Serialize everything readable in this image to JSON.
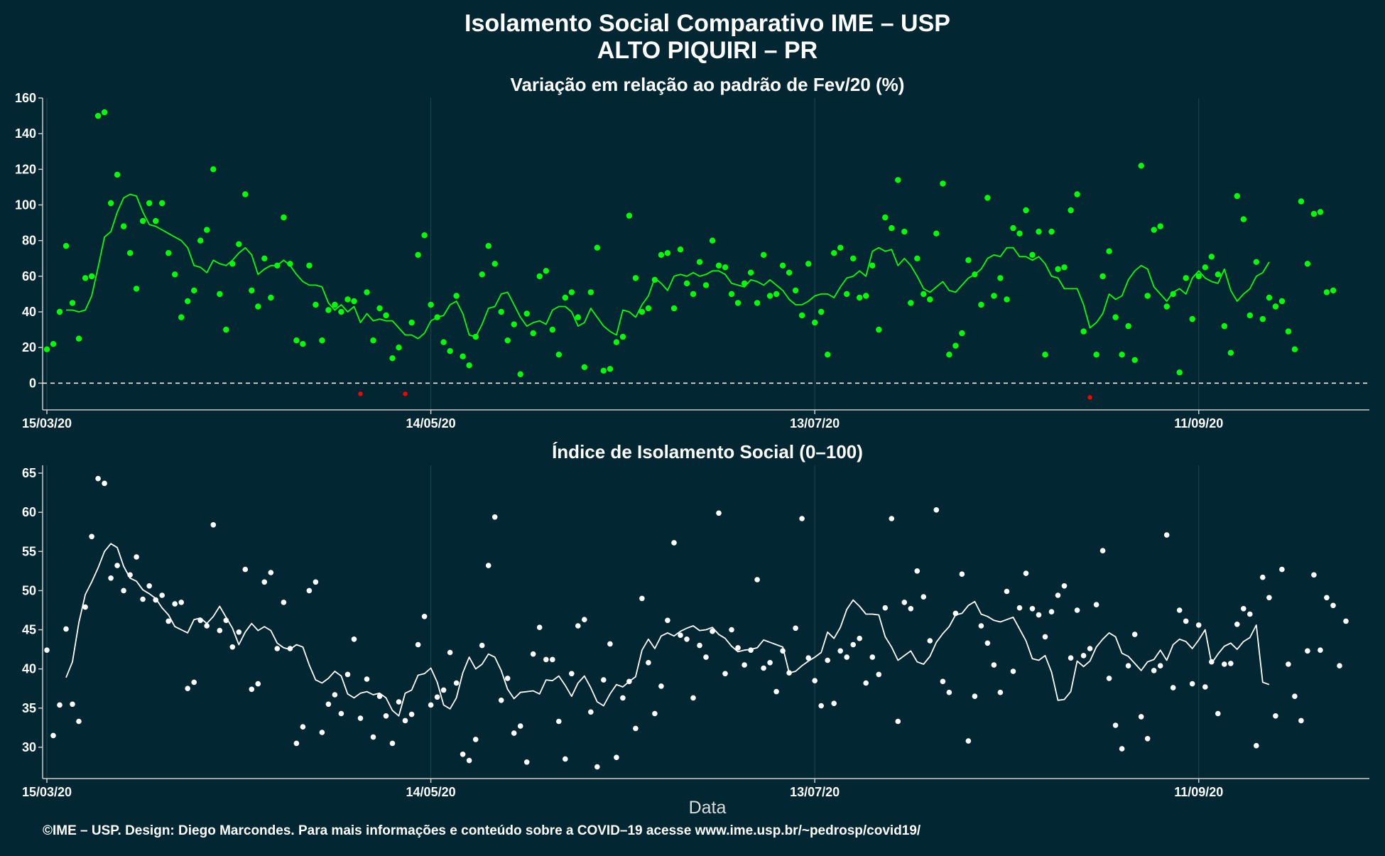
{
  "header": {
    "title_line1": "Isolamento Social Comparativo IME – USP",
    "title_line2": "ALTO PIQUIRI – PR"
  },
  "footer": {
    "caption": "©IME – USP. Design: Diego Marcondes. Para mais informações e conteúdo sobre a COVID–19 acesse www.ime.usp.br/~pedrosp/covid19/"
  },
  "colors": {
    "background": "#022733",
    "top_points": "#00ff00",
    "top_line": "#00ff00",
    "negative": "#ff0000",
    "bottom_points": "#ffffff",
    "bottom_line": "#ffffff",
    "grid": "#1b4750"
  },
  "chart_data": [
    {
      "type": "scatter",
      "title": "Variação em relação ao padrão de Fev/20 (%)",
      "xlabel": "",
      "ylabel": "",
      "x_start": "15/03/20",
      "x_ticks": [
        {
          "label": "15/03/20",
          "day": 0
        },
        {
          "label": "14/05/20",
          "day": 60
        },
        {
          "label": "13/07/20",
          "day": 120
        },
        {
          "label": "11/09/20",
          "day": 180
        }
      ],
      "xlim": [
        0,
        206
      ],
      "ylim": [
        -15,
        160
      ],
      "y_ticks": [
        0,
        20,
        40,
        60,
        80,
        100,
        120,
        140,
        160
      ],
      "reference_line": 0,
      "grid": true,
      "points": [
        19,
        22,
        40,
        77,
        45,
        25,
        59,
        60,
        150,
        152,
        101,
        117,
        88,
        73,
        53,
        91,
        101,
        91,
        101,
        73,
        61,
        37,
        46,
        52,
        80,
        86,
        120,
        50,
        30,
        67,
        78,
        106,
        52,
        43,
        70,
        48,
        66,
        93,
        67,
        24,
        22,
        66,
        44,
        24,
        41,
        44,
        40,
        47,
        46,
        -6,
        51,
        24,
        42,
        38,
        14,
        20,
        -6,
        34,
        72,
        83,
        44,
        37,
        23,
        18,
        49,
        15,
        10,
        26,
        61,
        77,
        67,
        40,
        24,
        33,
        5,
        39,
        28,
        60,
        63,
        30,
        16,
        48,
        51,
        37,
        9,
        51,
        76,
        7,
        8,
        23,
        26,
        94,
        59,
        40,
        42,
        58,
        72,
        73,
        42,
        75,
        56,
        50,
        68,
        55,
        80,
        66,
        65,
        50,
        45,
        56,
        62,
        45,
        72,
        49,
        50,
        66,
        62,
        52,
        38,
        67,
        34,
        40,
        16,
        73,
        76,
        50,
        70,
        48,
        49,
        66,
        30,
        93,
        87,
        114,
        85,
        45,
        70,
        50,
        47,
        84,
        112,
        16,
        21,
        28,
        69,
        61,
        44,
        104,
        49,
        59,
        47,
        87,
        84,
        97,
        72,
        85,
        16,
        85,
        64,
        65,
        97,
        106,
        29,
        -8,
        16,
        60,
        74,
        37,
        16,
        32,
        13,
        122,
        49,
        86,
        88,
        43,
        50,
        6,
        59,
        36,
        60,
        65,
        71,
        61,
        32,
        17,
        105,
        92,
        38,
        68,
        36,
        48,
        43,
        46,
        29,
        19,
        102,
        67,
        95,
        96,
        51,
        52
      ],
      "moving_average": [
        null,
        null,
        null,
        41,
        41,
        40,
        41,
        49,
        65,
        82,
        85,
        96,
        104,
        106,
        105,
        96,
        89,
        88,
        86,
        84,
        82,
        80,
        76,
        66,
        65,
        62,
        69,
        67,
        66,
        69,
        73,
        76,
        72,
        61,
        64,
        66,
        66,
        69,
        66,
        61,
        57,
        55,
        55,
        54,
        45,
        41,
        44,
        40,
        43,
        34,
        39,
        35,
        36,
        35,
        35,
        31,
        27,
        27,
        25,
        28,
        35,
        37,
        38,
        44,
        46,
        39,
        27,
        26,
        33,
        42,
        43,
        50,
        51,
        44,
        37,
        32,
        34,
        35,
        33,
        41,
        43,
        43,
        40,
        32,
        34,
        42,
        37,
        32,
        29,
        27,
        41,
        40,
        37,
        44,
        49,
        59,
        56,
        52,
        60,
        61,
        60,
        62,
        60,
        61,
        63,
        63,
        61,
        56,
        55,
        54,
        58,
        57,
        55,
        58,
        55,
        52,
        47,
        44,
        44,
        46,
        49,
        50,
        50,
        48,
        54,
        59,
        60,
        63,
        60,
        74,
        76,
        74,
        75,
        66,
        70,
        66,
        60,
        53,
        51,
        54,
        57,
        52,
        51,
        55,
        59,
        61,
        64,
        70,
        72,
        71,
        76,
        76,
        71,
        71,
        69,
        71,
        67,
        60,
        59,
        53,
        53,
        53,
        44,
        31,
        34,
        39,
        50,
        47,
        49,
        58,
        63,
        66,
        64,
        54,
        50,
        46,
        51,
        53,
        50,
        59,
        63,
        59,
        57,
        56,
        64,
        52,
        46,
        50,
        53,
        60,
        62,
        68
      ]
    },
    {
      "type": "scatter",
      "title": "Índice de Isolamento Social (0–100)",
      "xlabel": "Data",
      "ylabel": "",
      "x_start": "15/03/20",
      "x_ticks": [
        {
          "label": "15/03/20",
          "day": 0
        },
        {
          "label": "14/05/20",
          "day": 60
        },
        {
          "label": "13/07/20",
          "day": 120
        },
        {
          "label": "11/09/20",
          "day": 180
        }
      ],
      "xlim": [
        0,
        206
      ],
      "ylim": [
        26,
        66
      ],
      "y_ticks": [
        30,
        35,
        40,
        45,
        50,
        55,
        60,
        65
      ],
      "grid": true,
      "points": [
        42.4,
        31.5,
        35.4,
        45.1,
        35.5,
        33.3,
        47.9,
        56.9,
        64.3,
        63.7,
        51.6,
        53.2,
        50,
        52,
        54.3,
        48.9,
        50.6,
        48.8,
        49.4,
        46.1,
        48.3,
        48.5,
        37.5,
        38.3,
        46.2,
        45.5,
        58.4,
        44.9,
        46.2,
        42.8,
        44.7,
        52.7,
        37.4,
        38.1,
        51.1,
        52.3,
        42.6,
        48.5,
        42.6,
        30.5,
        32.6,
        50.0,
        51.1,
        31.9,
        35.5,
        36.7,
        34.3,
        39.3,
        43.8,
        33.7,
        38.7,
        31.3,
        36.5,
        34.0,
        30.5,
        35.8,
        33.4,
        34.2,
        43.1,
        46.7,
        35.4,
        36.4,
        37.3,
        42.1,
        38.2,
        29.1,
        28.3,
        31.0,
        43.0,
        53.2,
        59.4,
        36.0,
        38.8,
        31.8,
        32.7,
        28.1,
        41.9,
        45.3,
        41.2,
        41.2,
        33.3,
        28.5,
        39.4,
        45.5,
        46.3,
        34.5,
        27.5,
        38.6,
        43.2,
        28.7,
        36.3,
        38.4,
        32.4,
        49.0,
        40.8,
        34.3,
        37.8,
        46.2,
        56.1,
        44.3,
        43.8,
        36.3,
        43.0,
        41.5,
        44.8,
        59.9,
        39.4,
        45.0,
        42.7,
        40.5,
        42.4,
        51.4,
        40.1,
        40.8,
        37.1,
        42.3,
        39.5,
        45.2,
        59.2,
        41.4,
        38.5,
        35.3,
        41.1,
        35.6,
        42.3,
        41.5,
        43.1,
        43.9,
        38.2,
        41.5,
        39.3,
        47.8,
        59.2,
        33.3,
        48.5,
        47.7,
        52.5,
        49.2,
        43.6,
        60.3,
        38.4,
        37.0,
        47.1,
        52.1,
        30.8,
        36.5,
        45.5,
        43.3,
        40.5,
        37.0,
        49.9,
        39.7,
        47.8,
        52.2,
        47.7,
        46.9,
        44.1,
        47.3,
        49.4,
        50.6,
        41.4,
        47.5,
        41.7,
        42.6,
        48.2,
        55.1,
        38.8,
        32.8,
        29.8,
        40.4,
        44.4,
        33.9,
        31.1,
        39.8,
        40.4,
        57.1,
        37.6,
        47.5,
        46.1,
        38.1,
        45.6,
        37.7,
        40.9,
        34.3,
        40.6,
        40.7,
        45.7,
        47.7,
        47.0,
        30.2,
        51.7,
        49.1,
        34.0,
        52.7,
        40.6,
        36.5,
        33.4,
        42.3,
        52.0,
        42.4,
        49.1,
        48.1,
        40.4,
        46.1
      ],
      "moving_average": [
        null,
        null,
        null,
        38.9,
        40.9,
        45.9,
        49.5,
        51.1,
        52.9,
        55.0,
        56.0,
        55.5,
        53.1,
        51.6,
        51.2,
        50.1,
        49.6,
        49.0,
        47.8,
        46.9,
        45.4,
        45.0,
        44.6,
        46.3,
        46.5,
        45.8,
        46.7,
        48.0,
        46.6,
        45.2,
        43.1,
        44.7,
        45.8,
        44.9,
        45.4,
        44.9,
        43.3,
        42.7,
        42.5,
        43.1,
        42.8,
        40.5,
        38.6,
        38.2,
        38.8,
        39.7,
        39.1,
        36.8,
        36.3,
        36.9,
        37.1,
        36.7,
        36.9,
        36.3,
        34.7,
        34.0,
        36.9,
        37.3,
        39.2,
        39.4,
        40.1,
        38.3,
        35.4,
        34.9,
        36.3,
        39.5,
        41.5,
        40.0,
        40.6,
        41.9,
        41.5,
        39.8,
        37.4,
        36.2,
        37.0,
        37.1,
        37.2,
        36.8,
        38.6,
        38.5,
        39.1,
        37.9,
        36.5,
        38.2,
        39.1,
        37.6,
        35.8,
        35.3,
        36.8,
        38.0,
        37.7,
        38.4,
        39.0,
        42.4,
        43.8,
        42.6,
        44.2,
        44.6,
        44.2,
        44.8,
        45.2,
        45.5,
        44.9,
        45.0,
        45.3,
        44.4,
        43.9,
        42.9,
        42.2,
        42.4,
        42.5,
        42.7,
        43.7,
        43.4,
        43.1,
        42.8,
        39.5,
        39.7,
        40.4,
        41.0,
        41.5,
        42.1,
        44.7,
        43.9,
        45.3,
        47.6,
        48.8,
        48.0,
        47.0,
        47.0,
        46.9,
        44.1,
        42.8,
        41.1,
        41.7,
        42.3,
        40.9,
        40.6,
        41.6,
        43.4,
        44.5,
        45.4,
        46.9,
        47.1,
        48.1,
        48.6,
        47.0,
        46.7,
        46.2,
        46.0,
        46.3,
        46.6,
        45.1,
        43.6,
        41.3,
        41.1,
        41.7,
        39.6,
        36.0,
        36.1,
        37.1,
        41.0,
        40.3,
        41.0,
        42.8,
        43.8,
        44.6,
        44.1,
        42.0,
        41.6,
        40.7,
        39.8,
        40.9,
        41.2,
        42.4,
        41.1,
        43.1,
        43.8,
        43.5,
        42.6,
        43.7,
        45.0,
        40.7,
        41.9,
        42.9,
        43.3,
        42.5,
        43.5,
        44.0,
        45.6,
        38.3,
        38.0
      ]
    }
  ]
}
